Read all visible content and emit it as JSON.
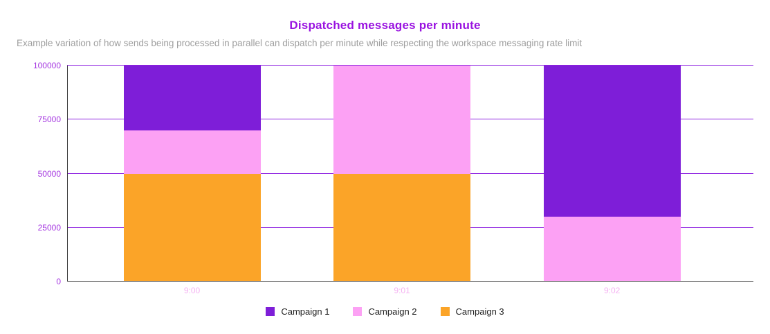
{
  "chart_data": {
    "type": "bar",
    "stacked": true,
    "title": "Dispatched messages per minute",
    "subtitle": "Example variation of how sends being processed in parallel can dispatch per minute while respecting the workspace messaging rate limit",
    "categories": [
      "9:00",
      "9:01",
      "9:02"
    ],
    "series": [
      {
        "name": "Campaign 1",
        "color": "#7e1ed8",
        "values": [
          30000,
          0,
          70000
        ]
      },
      {
        "name": "Campaign 2",
        "color": "#fca1f4",
        "values": [
          20000,
          50000,
          30000
        ]
      },
      {
        "name": "Campaign 3",
        "color": "#fba428",
        "values": [
          50000,
          50000,
          0
        ]
      }
    ],
    "xlabel": "",
    "ylabel": "",
    "ylim": [
      0,
      100000
    ],
    "yticks": [
      0,
      25000,
      50000,
      75000,
      100000
    ],
    "grid": true,
    "legend_position": "bottom"
  },
  "colors": {
    "title": "#9912e0",
    "subtitle": "#9e9e9e",
    "gridline": "#8d1fe0",
    "axis_line": "#3c3c3c",
    "y_tick_label": "#a435e0",
    "x_tick_label": "#f5b3f2",
    "legend_text": "#212121",
    "background": "#ffffff"
  }
}
